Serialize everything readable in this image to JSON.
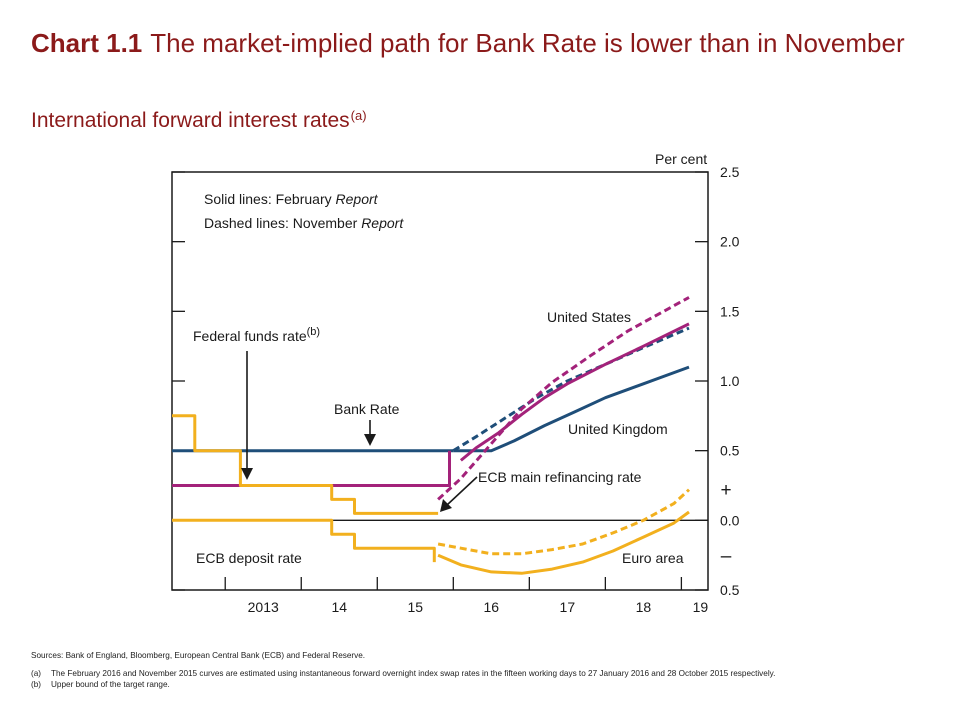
{
  "header": {
    "chart_num": "Chart 1.1",
    "title": "The market-implied path for Bank Rate is lower than in November",
    "subtitle": "International forward interest rates",
    "subtitle_note": "(a)"
  },
  "chart_data": {
    "type": "line",
    "x_unit": "year",
    "xlim": [
      2012.3,
      2019.35
    ],
    "ylim": [
      -0.5,
      2.5
    ],
    "x_ticks": [
      {
        "x": 2013.5,
        "label": "2013"
      },
      {
        "x": 2014.5,
        "label": "14"
      },
      {
        "x": 2015.5,
        "label": "15"
      },
      {
        "x": 2016.5,
        "label": "16"
      },
      {
        "x": 2017.5,
        "label": "17"
      },
      {
        "x": 2018.5,
        "label": "18"
      },
      {
        "x": 2019.25,
        "label": "19"
      }
    ],
    "y_ticks": [
      {
        "y": 2.5,
        "label": "2.5"
      },
      {
        "y": 2.0,
        "label": "2.0"
      },
      {
        "y": 1.5,
        "label": "1.5"
      },
      {
        "y": 1.0,
        "label": "1.0"
      },
      {
        "y": 0.5,
        "label": "0.5"
      },
      {
        "y": 0.0,
        "label": "0.0"
      },
      {
        "y": -0.5,
        "label": "0.5"
      }
    ],
    "y_axis_label": "Per cent",
    "sign_labels": {
      "plus": "+",
      "minus": "–"
    },
    "colors": {
      "uk": "#1f4e79",
      "us": "#a3227a",
      "euro": "#f2b01e",
      "axis": "#1a1a1a"
    },
    "legend_text": {
      "solid_prefix": "Solid lines:  February ",
      "solid_italic": "Report",
      "dashed_prefix": "Dashed lines:  November ",
      "dashed_italic": "Report"
    },
    "labels": {
      "fed_funds": "Federal funds rate",
      "fed_funds_note": "(b)",
      "bank_rate": "Bank Rate",
      "united_states": "United States",
      "united_kingdom": "United Kingdom",
      "ecb_refi": "ECB main refinancing rate",
      "ecb_deposit": "ECB deposit rate",
      "euro_area": "Euro area"
    },
    "series": [
      {
        "key": "bank_rate",
        "color": "uk",
        "dashed": false,
        "points": [
          [
            2012.3,
            0.5
          ],
          [
            2016.0,
            0.5
          ]
        ]
      },
      {
        "key": "uk_feb",
        "color": "uk",
        "dashed": false,
        "points": [
          [
            2016.0,
            0.5
          ],
          [
            2016.5,
            0.5
          ],
          [
            2016.8,
            0.57
          ],
          [
            2017.2,
            0.68
          ],
          [
            2017.6,
            0.78
          ],
          [
            2018.0,
            0.88
          ],
          [
            2018.5,
            0.98
          ],
          [
            2019.1,
            1.1
          ]
        ]
      },
      {
        "key": "uk_nov",
        "color": "uk",
        "dashed": true,
        "points": [
          [
            2016.0,
            0.5
          ],
          [
            2016.3,
            0.6
          ],
          [
            2016.7,
            0.74
          ],
          [
            2017.1,
            0.88
          ],
          [
            2017.5,
            1.0
          ],
          [
            2018.0,
            1.12
          ],
          [
            2018.5,
            1.24
          ],
          [
            2019.1,
            1.38
          ]
        ]
      },
      {
        "key": "fed_funds",
        "color": "us",
        "dashed": false,
        "points": [
          [
            2012.3,
            0.25
          ],
          [
            2015.95,
            0.25
          ],
          [
            2015.95,
            0.5
          ]
        ]
      },
      {
        "key": "us_feb",
        "color": "us",
        "dashed": false,
        "points": [
          [
            2016.1,
            0.43
          ],
          [
            2016.3,
            0.52
          ],
          [
            2016.6,
            0.63
          ],
          [
            2016.9,
            0.76
          ],
          [
            2017.2,
            0.88
          ],
          [
            2017.5,
            0.98
          ],
          [
            2018.0,
            1.12
          ],
          [
            2018.5,
            1.25
          ],
          [
            2019.1,
            1.41
          ]
        ]
      },
      {
        "key": "us_nov",
        "color": "us",
        "dashed": true,
        "points": [
          [
            2015.8,
            0.15
          ],
          [
            2016.1,
            0.3
          ],
          [
            2016.5,
            0.55
          ],
          [
            2016.9,
            0.8
          ],
          [
            2017.3,
            0.99
          ],
          [
            2017.8,
            1.18
          ],
          [
            2018.3,
            1.36
          ],
          [
            2019.1,
            1.6
          ]
        ]
      },
      {
        "key": "ecb_refi",
        "color": "euro",
        "dashed": false,
        "points": [
          [
            2012.3,
            0.75
          ],
          [
            2012.6,
            0.75
          ],
          [
            2012.6,
            0.5
          ],
          [
            2013.2,
            0.5
          ],
          [
            2013.2,
            0.25
          ],
          [
            2014.4,
            0.25
          ],
          [
            2014.4,
            0.15
          ],
          [
            2014.7,
            0.15
          ],
          [
            2014.7,
            0.05
          ],
          [
            2015.8,
            0.05
          ]
        ]
      },
      {
        "key": "ecb_deposit",
        "color": "euro",
        "dashed": false,
        "points": [
          [
            2012.3,
            0.0
          ],
          [
            2014.4,
            0.0
          ],
          [
            2014.4,
            -0.1
          ],
          [
            2014.7,
            -0.1
          ],
          [
            2014.7,
            -0.2
          ],
          [
            2015.75,
            -0.2
          ],
          [
            2015.75,
            -0.3
          ]
        ]
      },
      {
        "key": "euro_feb",
        "color": "euro",
        "dashed": false,
        "points": [
          [
            2015.8,
            -0.25
          ],
          [
            2016.1,
            -0.32
          ],
          [
            2016.5,
            -0.37
          ],
          [
            2016.9,
            -0.38
          ],
          [
            2017.3,
            -0.35
          ],
          [
            2017.7,
            -0.3
          ],
          [
            2018.1,
            -0.22
          ],
          [
            2018.5,
            -0.12
          ],
          [
            2018.9,
            -0.02
          ],
          [
            2019.1,
            0.06
          ]
        ]
      },
      {
        "key": "euro_nov",
        "color": "euro",
        "dashed": true,
        "points": [
          [
            2015.8,
            -0.17
          ],
          [
            2016.1,
            -0.2
          ],
          [
            2016.5,
            -0.24
          ],
          [
            2016.9,
            -0.24
          ],
          [
            2017.3,
            -0.21
          ],
          [
            2017.7,
            -0.17
          ],
          [
            2018.1,
            -0.09
          ],
          [
            2018.5,
            0.0
          ],
          [
            2018.9,
            0.12
          ],
          [
            2019.1,
            0.22
          ]
        ]
      }
    ]
  },
  "notes": {
    "sources": "Sources:  Bank of England, Bloomberg, European Central Bank (ECB) and Federal Reserve.",
    "a_mark": "(a)",
    "a_text": "The February 2016 and November 2015 curves are estimated using instantaneous forward overnight index swap rates in the fifteen working days to 27 January 2016 and 28 October 2015 respectively.",
    "b_mark": "(b)",
    "b_text": "Upper bound of the target range."
  }
}
